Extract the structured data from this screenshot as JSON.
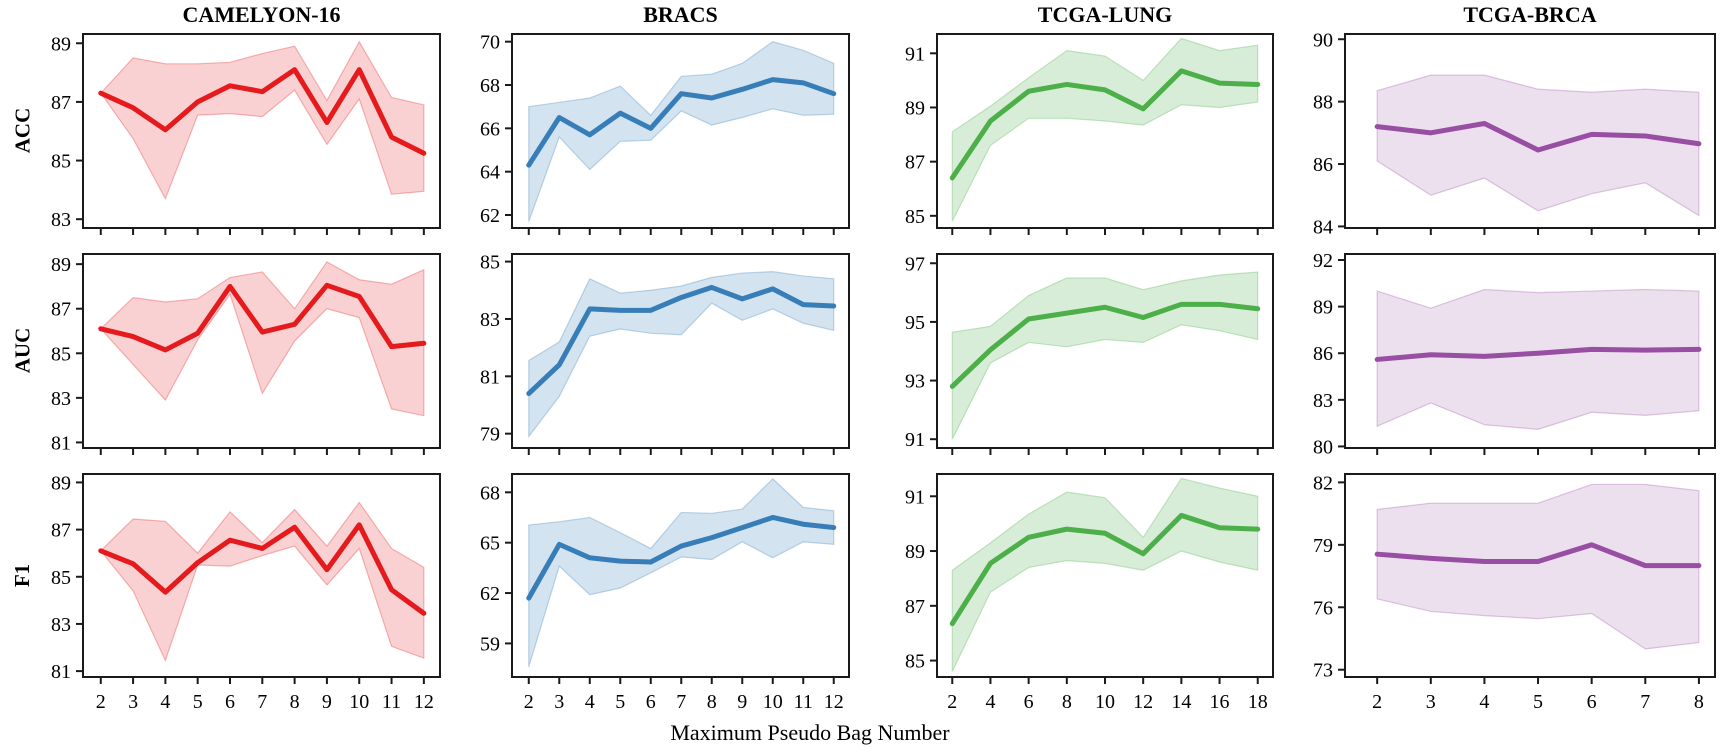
{
  "figure": {
    "xlabel": "Maximum Pseudo Bag Number",
    "row_labels": [
      "ACC",
      "AUC",
      "F1"
    ],
    "col_titles": [
      "CAMELYON-16",
      "BRACS",
      "TCGA-LUNG",
      "TCGA-BRCA"
    ],
    "colors": {
      "camelyon16": "#e41a1c",
      "bracs": "#377eb8",
      "tcga_lung": "#4daf4a",
      "tcga_brca": "#984ea3"
    }
  },
  "chart_data": [
    {
      "type": "line",
      "dataset": "CAMELYON-16",
      "metric": "ACC",
      "color": "#e41a1c",
      "band_opacity": 0.2,
      "x": [
        2,
        3,
        4,
        5,
        6,
        7,
        8,
        9,
        10,
        11,
        12
      ],
      "values": [
        87.3,
        86.8,
        86.05,
        87.0,
        87.55,
        87.35,
        88.1,
        86.3,
        88.1,
        85.8,
        85.25
      ],
      "band_lower": [
        87.3,
        85.75,
        83.7,
        86.55,
        86.6,
        86.5,
        87.4,
        85.55,
        87.1,
        83.85,
        83.95
      ],
      "band_upper": [
        87.3,
        88.5,
        88.3,
        88.3,
        88.35,
        88.65,
        88.9,
        87.05,
        89.05,
        87.15,
        86.9
      ],
      "xticks": [
        2,
        3,
        4,
        5,
        6,
        7,
        8,
        9,
        10,
        11,
        12
      ],
      "show_xtick_labels": false,
      "yticks": [
        83,
        85,
        87,
        89
      ],
      "ylim": [
        82.7,
        89.35
      ],
      "xlim": [
        1.45,
        12.5
      ]
    },
    {
      "type": "line",
      "dataset": "BRACS",
      "metric": "ACC",
      "color": "#377eb8",
      "band_opacity": 0.22,
      "x": [
        2,
        3,
        4,
        5,
        6,
        7,
        8,
        9,
        10,
        11,
        12
      ],
      "values": [
        64.3,
        66.5,
        65.7,
        66.7,
        66.0,
        67.6,
        67.4,
        67.8,
        68.25,
        68.1,
        67.6
      ],
      "band_lower": [
        61.7,
        65.6,
        64.1,
        65.4,
        65.45,
        66.8,
        66.15,
        66.5,
        66.9,
        66.6,
        66.65
      ],
      "band_upper": [
        67.0,
        67.2,
        67.4,
        67.95,
        66.6,
        68.4,
        68.5,
        69.0,
        70.0,
        69.6,
        69.0
      ],
      "xticks": [
        2,
        3,
        4,
        5,
        6,
        7,
        8,
        9,
        10,
        11,
        12
      ],
      "show_xtick_labels": false,
      "yticks": [
        62,
        64,
        66,
        68,
        70
      ],
      "ylim": [
        61.4,
        70.4
      ],
      "xlim": [
        1.45,
        12.5
      ]
    },
    {
      "type": "line",
      "dataset": "TCGA-LUNG",
      "metric": "ACC",
      "color": "#4daf4a",
      "band_opacity": 0.22,
      "x": [
        2,
        4,
        6,
        8,
        10,
        12,
        14,
        16,
        18
      ],
      "values": [
        86.4,
        88.5,
        89.6,
        89.85,
        89.65,
        88.95,
        90.35,
        89.9,
        89.85
      ],
      "band_lower": [
        84.8,
        87.6,
        88.6,
        88.6,
        88.5,
        88.35,
        89.1,
        89.0,
        89.2
      ],
      "band_upper": [
        88.1,
        89.05,
        90.1,
        91.1,
        90.9,
        90.0,
        91.55,
        91.1,
        91.3
      ],
      "xticks": [
        2,
        4,
        6,
        8,
        10,
        12,
        14,
        16,
        18
      ],
      "show_xtick_labels": false,
      "yticks": [
        85,
        87,
        89,
        91
      ],
      "ylim": [
        84.55,
        91.75
      ],
      "xlim": [
        1.2,
        18.8
      ]
    },
    {
      "type": "line",
      "dataset": "TCGA-BRCA",
      "metric": "ACC",
      "color": "#984ea3",
      "band_opacity": 0.18,
      "x": [
        2,
        3,
        4,
        5,
        6,
        7,
        8
      ],
      "values": [
        87.2,
        87.0,
        87.3,
        86.45,
        86.95,
        86.9,
        86.65
      ],
      "band_lower": [
        86.1,
        85.0,
        85.55,
        84.5,
        85.05,
        85.4,
        84.35
      ],
      "band_upper": [
        88.35,
        88.85,
        88.85,
        88.4,
        88.3,
        88.4,
        88.3
      ],
      "xticks": [
        2,
        3,
        4,
        5,
        6,
        7,
        8
      ],
      "show_xtick_labels": false,
      "yticks": [
        84,
        86,
        88,
        90
      ],
      "ylim": [
        83.95,
        90.2
      ],
      "xlim": [
        1.4,
        8.3
      ]
    },
    {
      "type": "line",
      "dataset": "CAMELYON-16",
      "metric": "AUC",
      "color": "#e41a1c",
      "band_opacity": 0.2,
      "x": [
        2,
        3,
        4,
        5,
        6,
        7,
        8,
        9,
        10,
        11,
        12
      ],
      "values": [
        86.1,
        85.75,
        85.15,
        85.9,
        88.0,
        85.95,
        86.3,
        88.05,
        87.55,
        85.3,
        85.45
      ],
      "band_lower": [
        86.1,
        84.5,
        82.9,
        85.6,
        87.65,
        83.2,
        85.55,
        87.0,
        86.6,
        82.5,
        82.2
      ],
      "band_upper": [
        86.1,
        87.5,
        87.3,
        87.45,
        88.4,
        88.65,
        87.0,
        89.1,
        88.3,
        88.1,
        88.75
      ],
      "xticks": [
        2,
        3,
        4,
        5,
        6,
        7,
        8,
        9,
        10,
        11,
        12
      ],
      "show_xtick_labels": false,
      "yticks": [
        81,
        83,
        85,
        87,
        89
      ],
      "ylim": [
        80.75,
        89.5
      ],
      "xlim": [
        1.45,
        12.5
      ]
    },
    {
      "type": "line",
      "dataset": "BRACS",
      "metric": "AUC",
      "color": "#377eb8",
      "band_opacity": 0.22,
      "x": [
        2,
        3,
        4,
        5,
        6,
        7,
        8,
        9,
        10,
        11,
        12
      ],
      "values": [
        80.4,
        81.4,
        83.35,
        83.3,
        83.3,
        83.75,
        84.1,
        83.7,
        84.05,
        83.5,
        83.45
      ],
      "band_lower": [
        78.9,
        80.3,
        82.4,
        82.65,
        82.5,
        82.45,
        83.55,
        82.95,
        83.35,
        82.85,
        82.6
      ],
      "band_upper": [
        81.55,
        82.2,
        84.4,
        83.9,
        84.0,
        84.15,
        84.45,
        84.6,
        84.65,
        84.5,
        84.4
      ],
      "xticks": [
        2,
        3,
        4,
        5,
        6,
        7,
        8,
        9,
        10,
        11,
        12
      ],
      "show_xtick_labels": false,
      "yticks": [
        79,
        81,
        83,
        85
      ],
      "ylim": [
        78.5,
        85.3
      ],
      "xlim": [
        1.45,
        12.5
      ]
    },
    {
      "type": "line",
      "dataset": "TCGA-LUNG",
      "metric": "AUC",
      "color": "#4daf4a",
      "band_opacity": 0.22,
      "x": [
        2,
        4,
        6,
        8,
        10,
        12,
        14,
        16,
        18
      ],
      "values": [
        92.8,
        94.05,
        95.1,
        95.3,
        95.5,
        95.15,
        95.6,
        95.6,
        95.45
      ],
      "band_lower": [
        91.0,
        93.6,
        94.3,
        94.15,
        94.4,
        94.3,
        94.9,
        94.7,
        94.4
      ],
      "band_upper": [
        94.65,
        94.85,
        95.9,
        96.5,
        96.5,
        96.1,
        96.4,
        96.6,
        96.7
      ],
      "xticks": [
        2,
        4,
        6,
        8,
        10,
        12,
        14,
        16,
        18
      ],
      "show_xtick_labels": false,
      "yticks": [
        91,
        93,
        95,
        97
      ],
      "ylim": [
        90.7,
        97.35
      ],
      "xlim": [
        1.2,
        18.8
      ]
    },
    {
      "type": "line",
      "dataset": "TCGA-BRCA",
      "metric": "AUC",
      "color": "#984ea3",
      "band_opacity": 0.18,
      "x": [
        2,
        3,
        4,
        5,
        6,
        7,
        8
      ],
      "values": [
        85.6,
        85.9,
        85.8,
        86.0,
        86.25,
        86.2,
        86.25
      ],
      "band_lower": [
        81.3,
        82.8,
        81.4,
        81.1,
        82.2,
        82.0,
        82.3
      ],
      "band_upper": [
        90.0,
        88.9,
        90.1,
        89.9,
        90.0,
        90.1,
        90.0
      ],
      "xticks": [
        2,
        3,
        4,
        5,
        6,
        7,
        8
      ],
      "show_xtick_labels": false,
      "yticks": [
        80,
        83,
        86,
        89,
        92
      ],
      "ylim": [
        79.9,
        92.45
      ],
      "xlim": [
        1.4,
        8.3
      ]
    },
    {
      "type": "line",
      "dataset": "CAMELYON-16",
      "metric": "F1",
      "color": "#e41a1c",
      "band_opacity": 0.2,
      "x": [
        2,
        3,
        4,
        5,
        6,
        7,
        8,
        9,
        10,
        11,
        12
      ],
      "values": [
        86.1,
        85.55,
        84.35,
        85.6,
        86.55,
        86.2,
        87.1,
        85.3,
        87.2,
        84.45,
        83.45
      ],
      "band_lower": [
        86.1,
        84.4,
        81.45,
        85.5,
        85.45,
        85.9,
        86.3,
        84.65,
        86.2,
        82.05,
        81.55
      ],
      "band_upper": [
        86.1,
        87.45,
        87.35,
        86.0,
        87.75,
        86.45,
        87.85,
        86.3,
        88.15,
        86.2,
        85.4
      ],
      "xticks": [
        2,
        3,
        4,
        5,
        6,
        7,
        8,
        9,
        10,
        11,
        12
      ],
      "show_xtick_labels": true,
      "yticks": [
        81,
        83,
        85,
        87,
        89
      ],
      "ylim": [
        80.75,
        89.4
      ],
      "xlim": [
        1.45,
        12.5
      ]
    },
    {
      "type": "line",
      "dataset": "BRACS",
      "metric": "F1",
      "color": "#377eb8",
      "band_opacity": 0.22,
      "x": [
        2,
        3,
        4,
        5,
        6,
        7,
        8,
        9,
        10,
        11,
        12
      ],
      "values": [
        61.7,
        64.9,
        64.1,
        63.9,
        63.85,
        64.8,
        65.3,
        65.9,
        66.5,
        66.1,
        65.9
      ],
      "band_lower": [
        57.6,
        63.6,
        61.9,
        62.3,
        63.2,
        64.15,
        64.0,
        65.05,
        64.1,
        65.05,
        64.9
      ],
      "band_upper": [
        66.05,
        66.25,
        66.5,
        65.6,
        64.65,
        66.8,
        66.75,
        67.0,
        68.8,
        67.1,
        66.9
      ],
      "xticks": [
        2,
        3,
        4,
        5,
        6,
        7,
        8,
        9,
        10,
        11,
        12
      ],
      "show_xtick_labels": true,
      "yticks": [
        59,
        62,
        65,
        68
      ],
      "ylim": [
        57.0,
        69.15
      ],
      "xlim": [
        1.45,
        12.5
      ]
    },
    {
      "type": "line",
      "dataset": "TCGA-LUNG",
      "metric": "F1",
      "color": "#4daf4a",
      "band_opacity": 0.22,
      "x": [
        2,
        4,
        6,
        8,
        10,
        12,
        14,
        16,
        18
      ],
      "values": [
        86.35,
        88.55,
        89.5,
        89.8,
        89.65,
        88.9,
        90.3,
        89.85,
        89.8
      ],
      "band_lower": [
        84.6,
        87.5,
        88.4,
        88.65,
        88.55,
        88.3,
        89.0,
        88.6,
        88.3
      ],
      "band_upper": [
        88.3,
        89.3,
        90.35,
        91.15,
        90.95,
        89.5,
        91.65,
        91.3,
        91.0
      ],
      "xticks": [
        2,
        4,
        6,
        8,
        10,
        12,
        14,
        16,
        18
      ],
      "show_xtick_labels": true,
      "yticks": [
        85,
        87,
        89,
        91
      ],
      "ylim": [
        84.4,
        91.85
      ],
      "xlim": [
        1.2,
        18.8
      ]
    },
    {
      "type": "line",
      "dataset": "TCGA-BRCA",
      "metric": "F1",
      "color": "#984ea3",
      "band_opacity": 0.18,
      "x": [
        2,
        3,
        4,
        5,
        6,
        7,
        8
      ],
      "values": [
        78.55,
        78.35,
        78.2,
        78.2,
        79.0,
        78.0,
        78.0
      ],
      "band_lower": [
        76.4,
        75.8,
        75.6,
        75.45,
        75.7,
        74.0,
        74.3
      ],
      "band_upper": [
        80.7,
        81.0,
        81.0,
        81.0,
        81.9,
        81.9,
        81.6
      ],
      "xticks": [
        2,
        3,
        4,
        5,
        6,
        7,
        8
      ],
      "show_xtick_labels": true,
      "yticks": [
        73,
        76,
        79,
        82
      ],
      "ylim": [
        72.65,
        82.45
      ],
      "xlim": [
        1.4,
        8.3
      ]
    }
  ]
}
